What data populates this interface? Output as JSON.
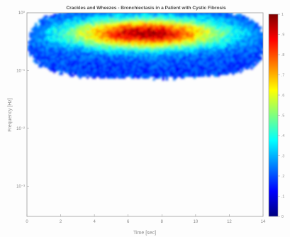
{
  "chart_data": {
    "type": "heatmap",
    "title": "Crackles and Wheezes - Bronchiectasis in a Patient with Cystic Fibrosis",
    "xlabel": "Time [sec]",
    "ylabel": "Frequency [Hz]",
    "xlim": [
      0,
      14
    ],
    "ylim": [
      0.0003,
      1
    ],
    "yscale": "log",
    "x_ticks": [
      "0",
      "2",
      "4",
      "6",
      "8",
      "10",
      "12",
      "14"
    ],
    "y_ticks": [
      "10⁰",
      "10⁻¹",
      "10⁻²",
      "10⁻³"
    ],
    "colorbar": {
      "range": [
        0,
        1
      ],
      "ticks": [
        "1",
        ".9",
        ".8",
        ".7",
        ".6",
        ".5",
        ".4",
        ".3",
        ".2",
        ".1",
        "0"
      ],
      "colormap": "jet"
    },
    "colors": {
      "jet": [
        "#00007f",
        "#0000ff",
        "#007fff",
        "#00ffff",
        "#7fff7f",
        "#ffff00",
        "#ff7f00",
        "#ff0000",
        "#7f0000"
      ]
    },
    "intensity_region": {
      "x_range": [
        0.2,
        13.9
      ],
      "freq_range": [
        0.1,
        1
      ],
      "core_center_x": 7,
      "core_center_freq": 0.45,
      "peak_intensity": 0.92
    }
  }
}
